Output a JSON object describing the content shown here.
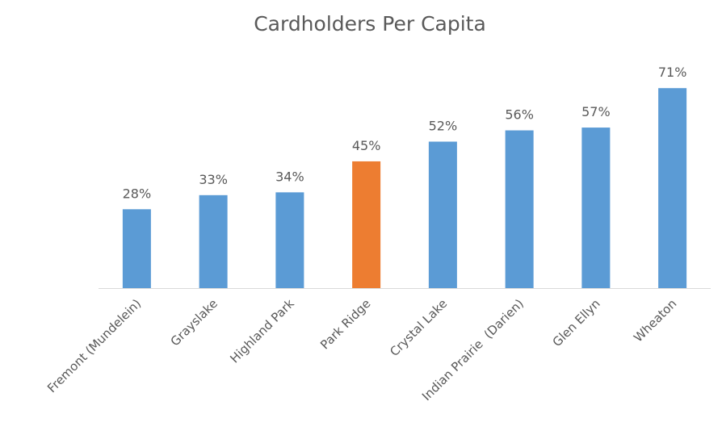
{
  "chart_data": {
    "type": "bar",
    "title": "Cardholders Per Capita",
    "categories": [
      "Fremont (Mundelein)",
      "Grayslake",
      "Highland Park",
      "Park Ridge",
      "Crystal Lake",
      "Indian Prairie  (Darien)",
      "Glen Ellyn",
      "Wheaton"
    ],
    "values": [
      28,
      33,
      34,
      45,
      52,
      56,
      57,
      71
    ],
    "value_labels": [
      "28%",
      "33%",
      "34%",
      "45%",
      "52%",
      "56%",
      "57%",
      "71%"
    ],
    "colors": [
      "#5b9bd5",
      "#5b9bd5",
      "#5b9bd5",
      "#ed7d31",
      "#5b9bd5",
      "#5b9bd5",
      "#5b9bd5",
      "#5b9bd5"
    ]
  }
}
